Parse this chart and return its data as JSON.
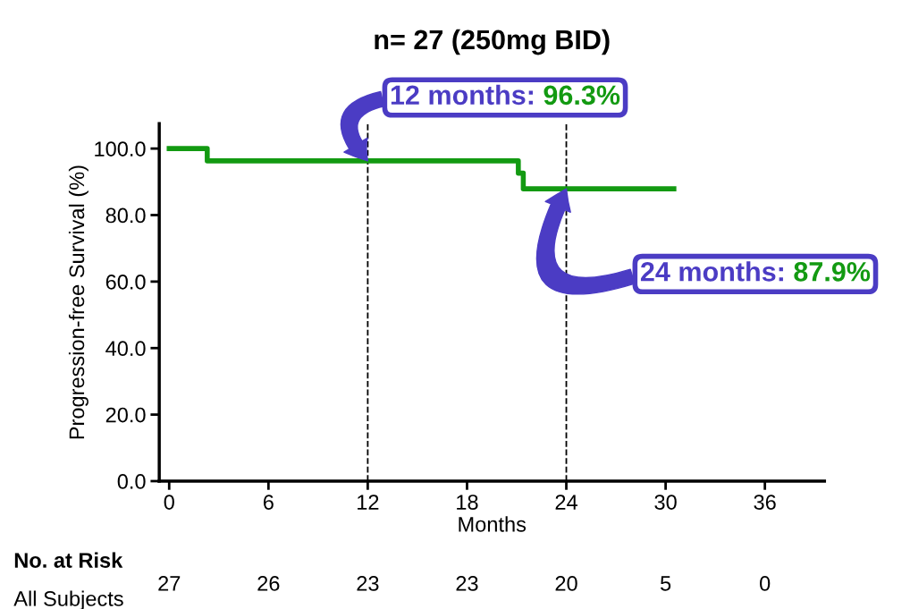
{
  "chart_data": {
    "type": "step",
    "title": "n= 27 (250mg BID)",
    "xlabel": "Months",
    "ylabel": "Progression-free Survival (%)",
    "series": [
      {
        "color": "#139a12",
        "x": [
          0,
          2.3,
          2.3,
          21.1,
          21.1,
          21.4,
          21.4,
          30.5
        ],
        "values": [
          100,
          100,
          96.3,
          96.3,
          92.6,
          92.6,
          87.9,
          87.9
        ]
      }
    ],
    "xlim": [
      -0.6,
      39.6
    ],
    "xticks": [
      0,
      6,
      12,
      18,
      24,
      30,
      36
    ],
    "ylim": [
      0,
      107.5
    ],
    "yticks": [
      {
        "value": 0,
        "label": "0.0"
      },
      {
        "value": 20,
        "label": "20.0"
      },
      {
        "value": 40,
        "label": "40.0"
      },
      {
        "value": 60,
        "label": "60.0"
      },
      {
        "value": 80,
        "label": "80.0"
      },
      {
        "value": 100,
        "label": "100.0"
      }
    ],
    "ref_lines": [
      {
        "axis": "x",
        "value": 12,
        "color": "#000000",
        "line_style": "dashed"
      },
      {
        "axis": "x",
        "value": 24,
        "color": "#000000",
        "line_style": "dashed"
      }
    ],
    "annotations": [
      "12 months: 96.3%",
      "24 months: 87.9%",
      "No. at Risk",
      "All Subjects",
      "27",
      "26",
      "23",
      "23",
      "20",
      "5",
      "0"
    ],
    "grid": false,
    "legend": false,
    "line_style": "solid",
    "marker": "none"
  }
}
